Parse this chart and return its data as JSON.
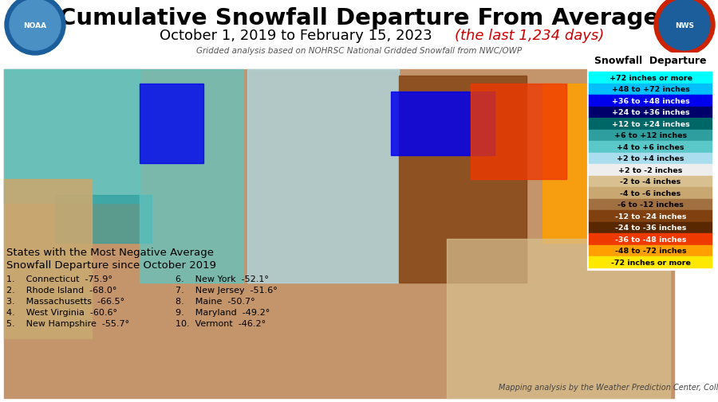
{
  "title": "Cumulative Snowfall Departure From Average",
  "subtitle_regular": "October 1, 2019 to February 15, 2023 ",
  "subtitle_italic": "(the last 1,234 days)",
  "gridded_note": "Gridded analysis based on NOHRSC National Gridded Snowfall from NWC/OWP",
  "mapping_credit": "Mapping analysis by the Weather Prediction Center, College Park, MD",
  "legend_title": "Snowfall  Departure",
  "legend_entries": [
    {
      "label": "+72 inches or more",
      "color": "#00FFFF",
      "text_color": "#000000"
    },
    {
      "label": "+48 to +72 inches",
      "color": "#00BFFF",
      "text_color": "#000000"
    },
    {
      "label": "+36 to +48 inches",
      "color": "#0000EE",
      "text_color": "#FFFFFF"
    },
    {
      "label": "+24 to +36 inches",
      "color": "#00006A",
      "text_color": "#FFFFFF"
    },
    {
      "label": "+12 to +24 inches",
      "color": "#006666",
      "text_color": "#FFFFFF"
    },
    {
      "label": "+6 to +12 inches",
      "color": "#2E9E9E",
      "text_color": "#000000"
    },
    {
      "label": "+4 to +6 inches",
      "color": "#5AC8C8",
      "text_color": "#000000"
    },
    {
      "label": "+2 to +4 inches",
      "color": "#AADEEE",
      "text_color": "#000000"
    },
    {
      "label": "+2 to -2 inches",
      "color": "#EEEEEE",
      "text_color": "#000000"
    },
    {
      "label": "-2 to -4 inches",
      "color": "#D8C090",
      "text_color": "#000000"
    },
    {
      "label": "-4 to -6 inches",
      "color": "#C8A870",
      "text_color": "#000000"
    },
    {
      "label": "-6 to -12 inches",
      "color": "#A07040",
      "text_color": "#000000"
    },
    {
      "label": "-12 to -24 inches",
      "color": "#804010",
      "text_color": "#FFFFFF"
    },
    {
      "label": "-24 to -36 inches",
      "color": "#5A2800",
      "text_color": "#FFFFFF"
    },
    {
      "label": "-36 to -48 inches",
      "color": "#EE3A00",
      "text_color": "#FFFFFF"
    },
    {
      "label": "-48 to -72 inches",
      "color": "#FFA000",
      "text_color": "#000000"
    },
    {
      "label": "-72 inches or more",
      "color": "#FFE800",
      "text_color": "#000000"
    }
  ],
  "states_list_title_line1": "States with the Most Negative Average",
  "states_list_title_line2": "Snowfall Departure since October 2019",
  "states_col1": [
    "1.    Connecticut  -75.9°",
    "2.    Rhode Island  -68.0°",
    "3.    Massachusetts  -66.5°",
    "4.    West Virginia  -60.6°",
    "5.    New Hampshire  -55.7°"
  ],
  "states_col2": [
    "6.    New York  -52.1°",
    "7.    New Jersey  -51.6°",
    "8.    Maine  -50.7°",
    "9.    Maryland  -49.2°",
    "10.  Vermont  -46.2°"
  ],
  "bg_color": "#FFFFFF",
  "header_bg_color": "#FFFFFF",
  "title_color": "#000000",
  "subtitle_color": "#000000",
  "italic_color": "#CC0000",
  "noaa_bg": "#1B5E9B",
  "nws_bg": "#1B5E9B",
  "map_bg": "#C8A870",
  "legend_bg": "#FFFFFF",
  "legend_border": "#888888"
}
